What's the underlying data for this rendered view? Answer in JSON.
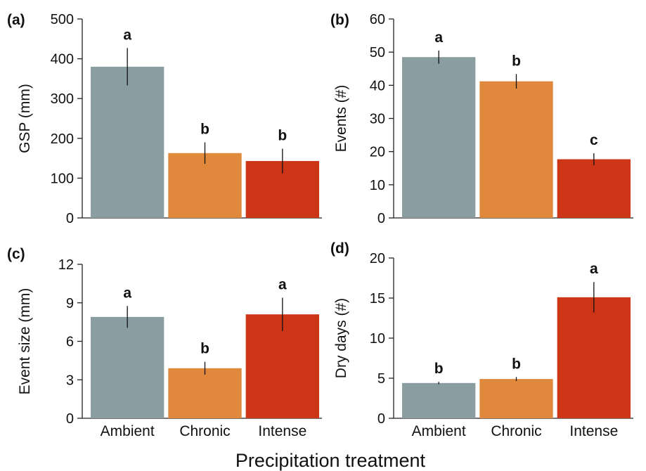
{
  "figure": {
    "xlabel": "Precipitation treatment"
  },
  "colors": {
    "Ambient": "#8a9ea2",
    "Chronic": "#e0883b",
    "Intense": "#cc3516"
  },
  "chart_data": [
    {
      "type": "bar",
      "panel": "(a)",
      "ylabel": "GSP (mm)",
      "ylim": [
        0,
        500
      ],
      "yticks": [
        0,
        100,
        200,
        300,
        400,
        500
      ],
      "categories": [
        "Ambient",
        "Chronic",
        "Intense"
      ],
      "show_categories": false,
      "values": [
        380,
        163,
        143
      ],
      "errors": [
        47,
        27,
        31
      ],
      "letters": [
        "a",
        "b",
        "b"
      ]
    },
    {
      "type": "bar",
      "panel": "(b)",
      "ylabel": "Events (#)",
      "ylim": [
        0,
        60
      ],
      "yticks": [
        0,
        10,
        20,
        30,
        40,
        50,
        60
      ],
      "categories": [
        "Ambient",
        "Chronic",
        "Intense"
      ],
      "show_categories": false,
      "values": [
        48.5,
        41.2,
        17.7
      ],
      "errors": [
        2.0,
        2.2,
        1.8
      ],
      "letters": [
        "a",
        "b",
        "c"
      ]
    },
    {
      "type": "bar",
      "panel": "(c)",
      "ylabel": "Event size (mm)",
      "ylim": [
        0,
        12
      ],
      "yticks": [
        0,
        3,
        6,
        9,
        12
      ],
      "categories": [
        "Ambient",
        "Chronic",
        "Intense"
      ],
      "show_categories": true,
      "values": [
        7.9,
        3.9,
        8.1
      ],
      "errors": [
        0.85,
        0.5,
        1.3
      ],
      "letters": [
        "a",
        "b",
        "a"
      ]
    },
    {
      "type": "bar",
      "panel": "(d)",
      "ylabel": "Dry days (#)",
      "ylim": [
        0,
        20
      ],
      "yticks": [
        0,
        5,
        10,
        15,
        20
      ],
      "categories": [
        "Ambient",
        "Chronic",
        "Intense"
      ],
      "show_categories": true,
      "values": [
        4.4,
        4.9,
        15.1
      ],
      "errors": [
        0.15,
        0.25,
        1.9
      ],
      "letters": [
        "b",
        "b",
        "a"
      ]
    }
  ]
}
